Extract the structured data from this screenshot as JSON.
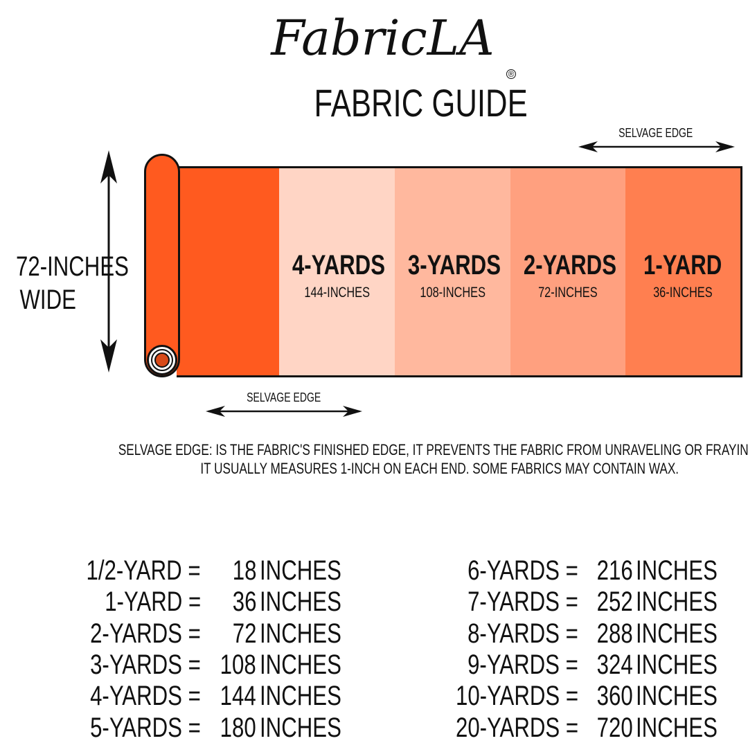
{
  "brand": {
    "logo": "FabricLA",
    "registered": "®",
    "title": "FABRIC GUIDE"
  },
  "width_label": {
    "line1": "72-INCHES",
    "line2": "WIDE"
  },
  "selvage_top": "SELVAGE EDGE",
  "selvage_bottom": "SELVAGE EDGE",
  "panels": [
    {
      "label": "",
      "sub": "",
      "color": "#FF5A1F"
    },
    {
      "label": "4-YARDS",
      "sub": "144-INCHES",
      "color": "#FFD5C5"
    },
    {
      "label": "3-YARDS",
      "sub": "108-INCHES",
      "color": "#FFB89E"
    },
    {
      "label": "2-YARDS",
      "sub": "72-INCHES",
      "color": "#FFA07F"
    },
    {
      "label": "1-YARD",
      "sub": "36-INCHES",
      "color": "#FF7F50"
    }
  ],
  "note": {
    "line1": "SELVAGE EDGE: IS THE FABRIC'S FINISHED EDGE, IT PREVENTS THE FABRIC FROM UNRAVELING OR FRAYING.",
    "line2": "IT USUALLY MEASURES 1-INCH ON EACH END. SOME FABRICS MAY CONTAIN WAX."
  },
  "conversions_left": [
    {
      "yards": "1/2-YARD =",
      "inches": "18",
      "unit": "INCHES"
    },
    {
      "yards": "1-YARD =",
      "inches": "36",
      "unit": "INCHES"
    },
    {
      "yards": "2-YARDS =",
      "inches": "72",
      "unit": "INCHES"
    },
    {
      "yards": "3-YARDS =",
      "inches": "108",
      "unit": "INCHES"
    },
    {
      "yards": "4-YARDS =",
      "inches": "144",
      "unit": "INCHES"
    },
    {
      "yards": "5-YARDS =",
      "inches": "180",
      "unit": "INCHES"
    }
  ],
  "conversions_right": [
    {
      "yards": "6-YARDS =",
      "inches": "216",
      "unit": "INCHES"
    },
    {
      "yards": "7-YARDS =",
      "inches": "252",
      "unit": "INCHES"
    },
    {
      "yards": "8-YARDS =",
      "inches": "288",
      "unit": "INCHES"
    },
    {
      "yards": "9-YARDS =",
      "inches": "324",
      "unit": "INCHES"
    },
    {
      "yards": "10-YARDS =",
      "inches": "360",
      "unit": "INCHES"
    },
    {
      "yards": "20-YARDS =",
      "inches": "720",
      "unit": "INCHES"
    }
  ]
}
